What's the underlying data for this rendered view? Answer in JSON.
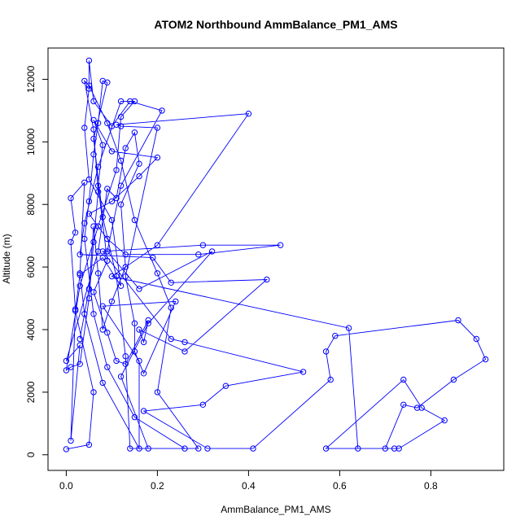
{
  "chart_data": {
    "type": "line",
    "title": "ATOM2 Northbound AmmBalance_PM1_AMS",
    "xlabel": "AmmBalance_PM1_AMS",
    "ylabel": "Altitude (m)",
    "xlim": [
      -0.04,
      0.96
    ],
    "ylim": [
      -500,
      13000
    ],
    "x_ticks": [
      0,
      0.2,
      0.4,
      0.6,
      0.8
    ],
    "x_tick_labels": [
      "0.0",
      "0.2",
      "0.4",
      "0.6",
      "0.8"
    ],
    "y_ticks": [
      0,
      2000,
      4000,
      6000,
      8000,
      10000,
      12000
    ],
    "y_tick_labels": [
      "0",
      "2000",
      "4000",
      "6000",
      "8000",
      "10000",
      "12000"
    ],
    "grid": false,
    "markers": "open-circle",
    "series_color": "#0000ff",
    "series": [
      {
        "points": [
          [
            0.0,
            180
          ],
          [
            0.05,
            320
          ],
          [
            0.06,
            2000
          ],
          [
            0.02,
            4600
          ],
          [
            0.03,
            5750
          ],
          [
            0.08,
            6300
          ],
          [
            0.12,
            5400
          ],
          [
            0.1,
            7500
          ],
          [
            0.05,
            8800
          ],
          [
            0.04,
            10450
          ],
          [
            0.05,
            11700
          ],
          [
            0.05,
            12600
          ],
          [
            0.06,
            11300
          ],
          [
            0.1,
            10500
          ],
          [
            0.14,
            11300
          ],
          [
            0.21,
            11000
          ],
          [
            0.12,
            8600
          ],
          [
            0.09,
            6500
          ],
          [
            0.16,
            5300
          ],
          [
            0.32,
            6500
          ],
          [
            0.18,
            4200
          ],
          [
            0.12,
            2500
          ],
          [
            0.18,
            200
          ],
          [
            0.26,
            200
          ],
          [
            0.15,
            1200
          ],
          [
            0.09,
            2800
          ],
          [
            0.06,
            4500
          ],
          [
            0.04,
            6900
          ],
          [
            0.05,
            8100
          ],
          [
            0.06,
            9600
          ],
          [
            0.07,
            10600
          ],
          [
            0.08,
            11950
          ],
          [
            0.09,
            11900
          ],
          [
            0.06,
            10100
          ],
          [
            0.08,
            7600
          ],
          [
            0.11,
            5700
          ],
          [
            0.13,
            3150
          ],
          [
            0.14,
            200
          ],
          [
            0.29,
            200
          ],
          [
            0.2,
            2000
          ],
          [
            0.23,
            4700
          ],
          [
            0.2,
            5800
          ],
          [
            0.15,
            7500
          ],
          [
            0.12,
            9400
          ],
          [
            0.09,
            10600
          ],
          [
            0.05,
            11800
          ],
          [
            0.04,
            11950
          ],
          [
            0.06,
            10400
          ],
          [
            0.07,
            8400
          ],
          [
            0.06,
            6800
          ],
          [
            0.05,
            5000
          ],
          [
            0.03,
            2900
          ],
          [
            0.01,
            2800
          ],
          [
            0.0,
            2700
          ],
          [
            0.03,
            5400
          ],
          [
            0.07,
            7300
          ],
          [
            0.11,
            9100
          ],
          [
            0.12,
            10800
          ],
          [
            0.15,
            11300
          ],
          [
            0.12,
            11300
          ],
          [
            0.07,
            9200
          ],
          [
            0.04,
            7400
          ],
          [
            0.03,
            6400
          ],
          [
            0.19,
            6300
          ],
          [
            0.23,
            5500
          ],
          [
            0.44,
            5600
          ],
          [
            0.26,
            3300
          ],
          [
            0.16,
            4000
          ],
          [
            0.17,
            3600
          ],
          [
            0.18,
            4300
          ],
          [
            0.13,
            2900
          ],
          [
            0.11,
            3000
          ],
          [
            0.09,
            3900
          ],
          [
            0.06,
            5200
          ],
          [
            0.09,
            6200
          ],
          [
            0.07,
            8600
          ],
          [
            0.08,
            9900
          ],
          [
            0.06,
            10700
          ],
          [
            0.1,
            9700
          ],
          [
            0.2,
            9500
          ],
          [
            0.16,
            8900
          ],
          [
            0.1,
            8100
          ],
          [
            0.05,
            7700
          ],
          [
            0.09,
            6900
          ],
          [
            0.13,
            6400
          ],
          [
            0.29,
            6400
          ],
          [
            0.47,
            6700
          ],
          [
            0.3,
            6700
          ],
          [
            0.08,
            6500
          ],
          [
            0.23,
            3700
          ],
          [
            0.26,
            3600
          ],
          [
            0.52,
            2650
          ],
          [
            0.35,
            2200
          ],
          [
            0.3,
            1600
          ],
          [
            0.17,
            1400
          ],
          [
            0.31,
            200
          ],
          [
            0.41,
            200
          ],
          [
            0.58,
            2400
          ],
          [
            0.57,
            3300
          ],
          [
            0.59,
            3800
          ],
          [
            0.86,
            4300
          ],
          [
            0.9,
            3700
          ],
          [
            0.92,
            3050
          ],
          [
            0.85,
            2400
          ],
          [
            0.77,
            1500
          ],
          [
            0.74,
            1600
          ],
          [
            0.7,
            200
          ],
          [
            0.57,
            200
          ],
          [
            0.74,
            2400
          ],
          [
            0.78,
            1500
          ],
          [
            0.83,
            1100
          ],
          [
            0.73,
            200
          ],
          [
            0.72,
            200
          ],
          [
            0.64,
            200
          ],
          [
            0.62,
            4050
          ],
          [
            0.1,
            5700
          ],
          [
            0.2,
            6700
          ],
          [
            0.4,
            10900
          ],
          [
            0.11,
            10550
          ],
          [
            0.12,
            10500
          ],
          [
            0.2,
            10450
          ],
          [
            0.13,
            5700
          ],
          [
            0.15,
            4200
          ],
          [
            0.15,
            3300
          ],
          [
            0.17,
            2600
          ],
          [
            0.24,
            4900
          ],
          [
            0.08,
            4750
          ],
          [
            0.16,
            3000
          ],
          [
            0.16,
            200
          ],
          [
            0.08,
            2300
          ],
          [
            0.04,
            4500
          ],
          [
            0.03,
            5800
          ],
          [
            0.04,
            8700
          ],
          [
            0.01,
            8200
          ],
          [
            0.02,
            7100
          ],
          [
            0.01,
            6800
          ],
          [
            0.02,
            4650
          ],
          [
            0.01,
            450
          ],
          [
            0.03,
            3500
          ],
          [
            0.0,
            3000
          ],
          [
            0.07,
            6500
          ],
          [
            0.09,
            8500
          ],
          [
            0.11,
            8200
          ],
          [
            0.13,
            9800
          ],
          [
            0.15,
            10300
          ],
          [
            0.16,
            9300
          ],
          [
            0.12,
            8000
          ],
          [
            0.13,
            6000
          ],
          [
            0.1,
            4900
          ],
          [
            0.08,
            4000
          ],
          [
            0.07,
            5800
          ],
          [
            0.06,
            7300
          ],
          [
            0.05,
            5300
          ],
          [
            0.03,
            3700
          ]
        ]
      }
    ]
  }
}
